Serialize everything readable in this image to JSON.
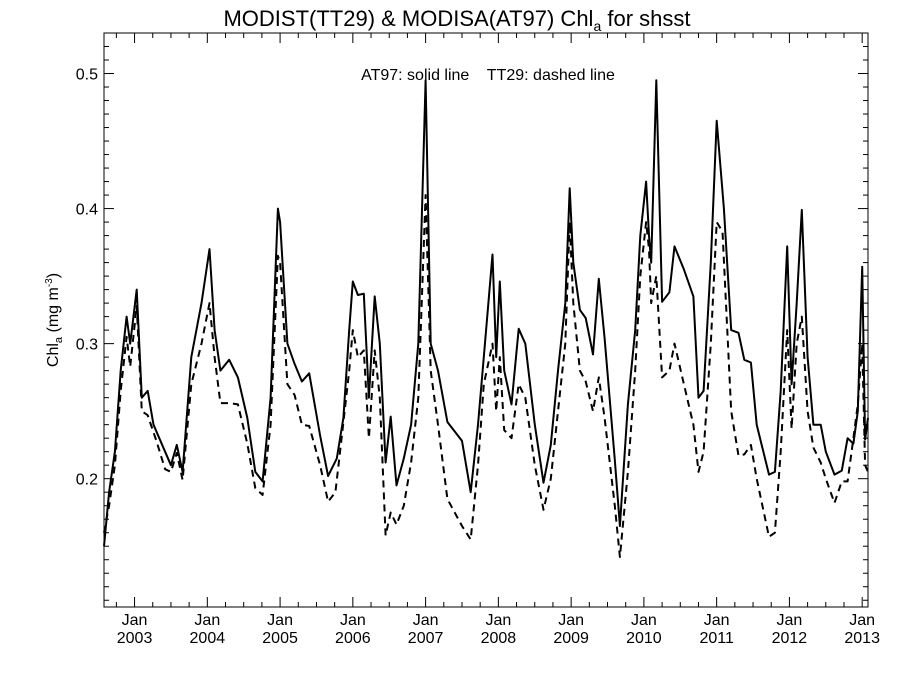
{
  "chart_data": {
    "type": "line",
    "title_main": "MODIST(TT29) & MODISA(AT97)  Chl",
    "title_sub": "a",
    "title_tail": " for shsst",
    "ylabel_main": "Chl",
    "ylabel_sub": "a",
    "ylabel_unit": " (mg m",
    "ylabel_exp": "-3",
    "ylabel_close": ")",
    "annotation": "AT97: solid line    TT29: dashed line",
    "ylim": [
      0.105,
      0.53
    ],
    "yticks": [
      0.2,
      0.3,
      0.4,
      0.5
    ],
    "ytick_labels": [
      "0.2",
      "0.3",
      "0.4",
      "0.5"
    ],
    "xlim": [
      2002.58,
      2013.08
    ],
    "xticks": [
      {
        "x": 2003,
        "month": "Jan",
        "year": "2003"
      },
      {
        "x": 2004,
        "month": "Jan",
        "year": "2004"
      },
      {
        "x": 2005,
        "month": "Jan",
        "year": "2005"
      },
      {
        "x": 2006,
        "month": "Jan",
        "year": "2006"
      },
      {
        "x": 2007,
        "month": "Jan",
        "year": "2007"
      },
      {
        "x": 2008,
        "month": "Jan",
        "year": "2008"
      },
      {
        "x": 2009,
        "month": "Jan",
        "year": "2009"
      },
      {
        "x": 2010,
        "month": "Jan",
        "year": "2010"
      },
      {
        "x": 2011,
        "month": "Jan",
        "year": "2011"
      },
      {
        "x": 2012,
        "month": "Jan",
        "year": "2012"
      },
      {
        "x": 2013,
        "month": "Jan",
        "year": "2013"
      }
    ],
    "series": [
      {
        "label": "AT97",
        "style": "solid",
        "points": [
          [
            2002.58,
            0.15
          ],
          [
            2002.65,
            0.19
          ],
          [
            2002.73,
            0.22
          ],
          [
            2002.81,
            0.28
          ],
          [
            2002.89,
            0.32
          ],
          [
            2002.94,
            0.3
          ],
          [
            2003.03,
            0.34
          ],
          [
            2003.1,
            0.26
          ],
          [
            2003.18,
            0.265
          ],
          [
            2003.26,
            0.24
          ],
          [
            2003.42,
            0.22
          ],
          [
            2003.5,
            0.21
          ],
          [
            2003.58,
            0.225
          ],
          [
            2003.66,
            0.205
          ],
          [
            2003.78,
            0.29
          ],
          [
            2003.92,
            0.33
          ],
          [
            2004.03,
            0.37
          ],
          [
            2004.1,
            0.31
          ],
          [
            2004.18,
            0.28
          ],
          [
            2004.3,
            0.288
          ],
          [
            2004.42,
            0.275
          ],
          [
            2004.55,
            0.245
          ],
          [
            2004.66,
            0.205
          ],
          [
            2004.76,
            0.198
          ],
          [
            2004.87,
            0.26
          ],
          [
            2004.97,
            0.4
          ],
          [
            2005.0,
            0.39
          ],
          [
            2005.1,
            0.3
          ],
          [
            2005.2,
            0.285
          ],
          [
            2005.3,
            0.272
          ],
          [
            2005.4,
            0.278
          ],
          [
            2005.55,
            0.232
          ],
          [
            2005.66,
            0.202
          ],
          [
            2005.78,
            0.215
          ],
          [
            2005.87,
            0.245
          ],
          [
            2005.95,
            0.31
          ],
          [
            2006.0,
            0.346
          ],
          [
            2006.07,
            0.336
          ],
          [
            2006.15,
            0.337
          ],
          [
            2006.22,
            0.26
          ],
          [
            2006.3,
            0.335
          ],
          [
            2006.37,
            0.3
          ],
          [
            2006.45,
            0.212
          ],
          [
            2006.52,
            0.246
          ],
          [
            2006.6,
            0.195
          ],
          [
            2006.7,
            0.215
          ],
          [
            2006.8,
            0.24
          ],
          [
            2006.9,
            0.3
          ],
          [
            2007.0,
            0.495
          ],
          [
            2007.07,
            0.3
          ],
          [
            2007.17,
            0.28
          ],
          [
            2007.3,
            0.242
          ],
          [
            2007.5,
            0.228
          ],
          [
            2007.62,
            0.19
          ],
          [
            2007.72,
            0.24
          ],
          [
            2007.8,
            0.29
          ],
          [
            2007.92,
            0.366
          ],
          [
            2007.97,
            0.29
          ],
          [
            2008.02,
            0.346
          ],
          [
            2008.08,
            0.28
          ],
          [
            2008.18,
            0.255
          ],
          [
            2008.28,
            0.311
          ],
          [
            2008.37,
            0.3
          ],
          [
            2008.5,
            0.24
          ],
          [
            2008.62,
            0.197
          ],
          [
            2008.72,
            0.225
          ],
          [
            2008.82,
            0.28
          ],
          [
            2008.92,
            0.33
          ],
          [
            2008.98,
            0.415
          ],
          [
            2009.03,
            0.36
          ],
          [
            2009.12,
            0.325
          ],
          [
            2009.2,
            0.319
          ],
          [
            2009.3,
            0.292
          ],
          [
            2009.38,
            0.348
          ],
          [
            2009.46,
            0.304
          ],
          [
            2009.6,
            0.214
          ],
          [
            2009.67,
            0.165
          ],
          [
            2009.78,
            0.255
          ],
          [
            2009.88,
            0.31
          ],
          [
            2009.95,
            0.38
          ],
          [
            2010.03,
            0.42
          ],
          [
            2010.07,
            0.38
          ],
          [
            2010.1,
            0.36
          ],
          [
            2010.17,
            0.495
          ],
          [
            2010.25,
            0.331
          ],
          [
            2010.35,
            0.338
          ],
          [
            2010.42,
            0.372
          ],
          [
            2010.55,
            0.355
          ],
          [
            2010.68,
            0.335
          ],
          [
            2010.75,
            0.26
          ],
          [
            2010.82,
            0.265
          ],
          [
            2010.92,
            0.36
          ],
          [
            2011.0,
            0.465
          ],
          [
            2011.1,
            0.4
          ],
          [
            2011.2,
            0.31
          ],
          [
            2011.3,
            0.308
          ],
          [
            2011.38,
            0.288
          ],
          [
            2011.47,
            0.286
          ],
          [
            2011.55,
            0.24
          ],
          [
            2011.72,
            0.203
          ],
          [
            2011.8,
            0.205
          ],
          [
            2011.88,
            0.265
          ],
          [
            2011.97,
            0.372
          ],
          [
            2012.03,
            0.27
          ],
          [
            2012.1,
            0.33
          ],
          [
            2012.17,
            0.399
          ],
          [
            2012.25,
            0.29
          ],
          [
            2012.33,
            0.24
          ],
          [
            2012.43,
            0.24
          ],
          [
            2012.5,
            0.22
          ],
          [
            2012.62,
            0.203
          ],
          [
            2012.72,
            0.206
          ],
          [
            2012.8,
            0.23
          ],
          [
            2012.88,
            0.226
          ],
          [
            2012.94,
            0.25
          ],
          [
            2013.0,
            0.357
          ],
          [
            2013.04,
            0.229
          ],
          [
            2013.08,
            0.245
          ]
        ]
      },
      {
        "label": "TT29",
        "style": "dashed",
        "points": [
          [
            2002.58,
            0.16
          ],
          [
            2002.65,
            0.18
          ],
          [
            2002.73,
            0.21
          ],
          [
            2002.81,
            0.265
          ],
          [
            2002.89,
            0.305
          ],
          [
            2002.94,
            0.283
          ],
          [
            2003.03,
            0.328
          ],
          [
            2003.1,
            0.25
          ],
          [
            2003.18,
            0.247
          ],
          [
            2003.3,
            0.228
          ],
          [
            2003.42,
            0.207
          ],
          [
            2003.5,
            0.205
          ],
          [
            2003.58,
            0.219
          ],
          [
            2003.66,
            0.199
          ],
          [
            2003.78,
            0.27
          ],
          [
            2003.92,
            0.3
          ],
          [
            2004.03,
            0.33
          ],
          [
            2004.1,
            0.29
          ],
          [
            2004.18,
            0.256
          ],
          [
            2004.3,
            0.256
          ],
          [
            2004.42,
            0.255
          ],
          [
            2004.55,
            0.226
          ],
          [
            2004.66,
            0.193
          ],
          [
            2004.76,
            0.188
          ],
          [
            2004.87,
            0.24
          ],
          [
            2004.97,
            0.365
          ],
          [
            2005.0,
            0.36
          ],
          [
            2005.1,
            0.27
          ],
          [
            2005.2,
            0.262
          ],
          [
            2005.3,
            0.24
          ],
          [
            2005.4,
            0.239
          ],
          [
            2005.55,
            0.21
          ],
          [
            2005.66,
            0.183
          ],
          [
            2005.76,
            0.19
          ],
          [
            2005.85,
            0.232
          ],
          [
            2005.95,
            0.28
          ],
          [
            2006.0,
            0.31
          ],
          [
            2006.07,
            0.29
          ],
          [
            2006.15,
            0.295
          ],
          [
            2006.22,
            0.23
          ],
          [
            2006.3,
            0.295
          ],
          [
            2006.37,
            0.26
          ],
          [
            2006.45,
            0.158
          ],
          [
            2006.52,
            0.175
          ],
          [
            2006.6,
            0.166
          ],
          [
            2006.7,
            0.18
          ],
          [
            2006.8,
            0.212
          ],
          [
            2006.9,
            0.26
          ],
          [
            2007.0,
            0.41
          ],
          [
            2007.07,
            0.28
          ],
          [
            2007.17,
            0.24
          ],
          [
            2007.3,
            0.185
          ],
          [
            2007.5,
            0.165
          ],
          [
            2007.62,
            0.155
          ],
          [
            2007.72,
            0.21
          ],
          [
            2007.8,
            0.27
          ],
          [
            2007.92,
            0.3
          ],
          [
            2007.97,
            0.25
          ],
          [
            2008.02,
            0.29
          ],
          [
            2008.08,
            0.236
          ],
          [
            2008.18,
            0.23
          ],
          [
            2008.28,
            0.27
          ],
          [
            2008.37,
            0.26
          ],
          [
            2008.5,
            0.21
          ],
          [
            2008.62,
            0.177
          ],
          [
            2008.72,
            0.2
          ],
          [
            2008.82,
            0.25
          ],
          [
            2008.92,
            0.3
          ],
          [
            2008.98,
            0.39
          ],
          [
            2009.03,
            0.33
          ],
          [
            2009.12,
            0.28
          ],
          [
            2009.2,
            0.272
          ],
          [
            2009.3,
            0.25
          ],
          [
            2009.38,
            0.275
          ],
          [
            2009.46,
            0.245
          ],
          [
            2009.6,
            0.18
          ],
          [
            2009.67,
            0.142
          ],
          [
            2009.78,
            0.205
          ],
          [
            2009.88,
            0.28
          ],
          [
            2009.95,
            0.35
          ],
          [
            2010.03,
            0.39
          ],
          [
            2010.07,
            0.37
          ],
          [
            2010.1,
            0.33
          ],
          [
            2010.17,
            0.35
          ],
          [
            2010.25,
            0.275
          ],
          [
            2010.35,
            0.28
          ],
          [
            2010.42,
            0.3
          ],
          [
            2010.55,
            0.27
          ],
          [
            2010.68,
            0.24
          ],
          [
            2010.75,
            0.205
          ],
          [
            2010.82,
            0.22
          ],
          [
            2010.92,
            0.3
          ],
          [
            2011.0,
            0.39
          ],
          [
            2011.08,
            0.383
          ],
          [
            2011.2,
            0.25
          ],
          [
            2011.3,
            0.217
          ],
          [
            2011.38,
            0.218
          ],
          [
            2011.47,
            0.225
          ],
          [
            2011.55,
            0.2
          ],
          [
            2011.72,
            0.157
          ],
          [
            2011.8,
            0.16
          ],
          [
            2011.88,
            0.22
          ],
          [
            2011.97,
            0.31
          ],
          [
            2012.03,
            0.237
          ],
          [
            2012.1,
            0.3
          ],
          [
            2012.17,
            0.32
          ],
          [
            2012.25,
            0.25
          ],
          [
            2012.33,
            0.223
          ],
          [
            2012.43,
            0.212
          ],
          [
            2012.5,
            0.2
          ],
          [
            2012.62,
            0.182
          ],
          [
            2012.72,
            0.198
          ],
          [
            2012.8,
            0.198
          ],
          [
            2012.88,
            0.23
          ],
          [
            2012.94,
            0.255
          ],
          [
            2013.0,
            0.3
          ],
          [
            2013.04,
            0.21
          ],
          [
            2013.08,
            0.205
          ]
        ]
      }
    ]
  }
}
